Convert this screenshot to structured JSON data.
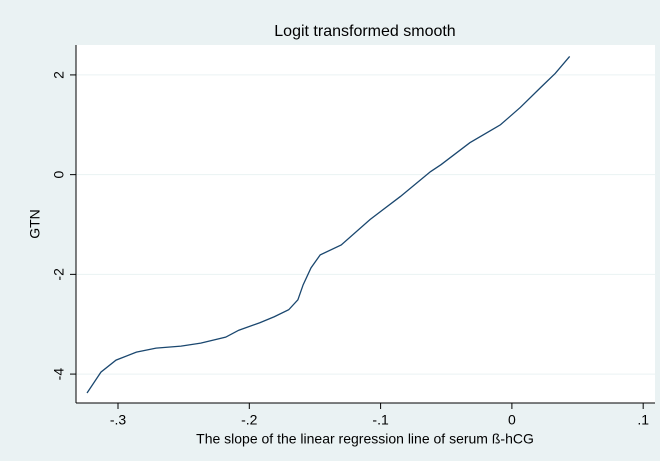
{
  "chart_data": {
    "type": "line",
    "title": "Logit transformed smooth",
    "xlabel": "The slope of the linear regression line of serum ß-hCG",
    "ylabel": "GTN",
    "x": [
      -0.3236,
      -0.313,
      -0.3015,
      -0.286,
      -0.271,
      -0.252,
      -0.237,
      -0.218,
      -0.208,
      -0.192,
      -0.181,
      -0.17,
      -0.163,
      -0.159,
      -0.153,
      -0.146,
      -0.13,
      -0.108,
      -0.085,
      -0.062,
      -0.054,
      -0.032,
      -0.0087,
      0.0065,
      0.022,
      0.033,
      0.044
    ],
    "series": [
      {
        "name": "GTN",
        "color": "#1a476f",
        "values": [
          -4.38,
          -3.96,
          -3.72,
          -3.56,
          -3.48,
          -3.44,
          -3.38,
          -3.26,
          -3.12,
          -2.97,
          -2.85,
          -2.71,
          -2.51,
          -2.21,
          -1.87,
          -1.61,
          -1.41,
          -0.9,
          -0.44,
          0.06,
          0.2,
          0.64,
          1.0,
          1.35,
          1.75,
          2.03,
          2.37
        ]
      }
    ],
    "xlim": [
      -0.332,
      0.109
    ],
    "xticks": [
      {
        "value": -0.3,
        "label": "-.3"
      },
      {
        "value": -0.2,
        "label": "-.2"
      },
      {
        "value": -0.1,
        "label": "-.1"
      },
      0,
      {
        "value": 0.1,
        "label": ".1"
      }
    ],
    "ylim": [
      -4.58,
      2.6
    ],
    "yticks": [
      -4,
      -2,
      0,
      2
    ],
    "grid": true
  }
}
